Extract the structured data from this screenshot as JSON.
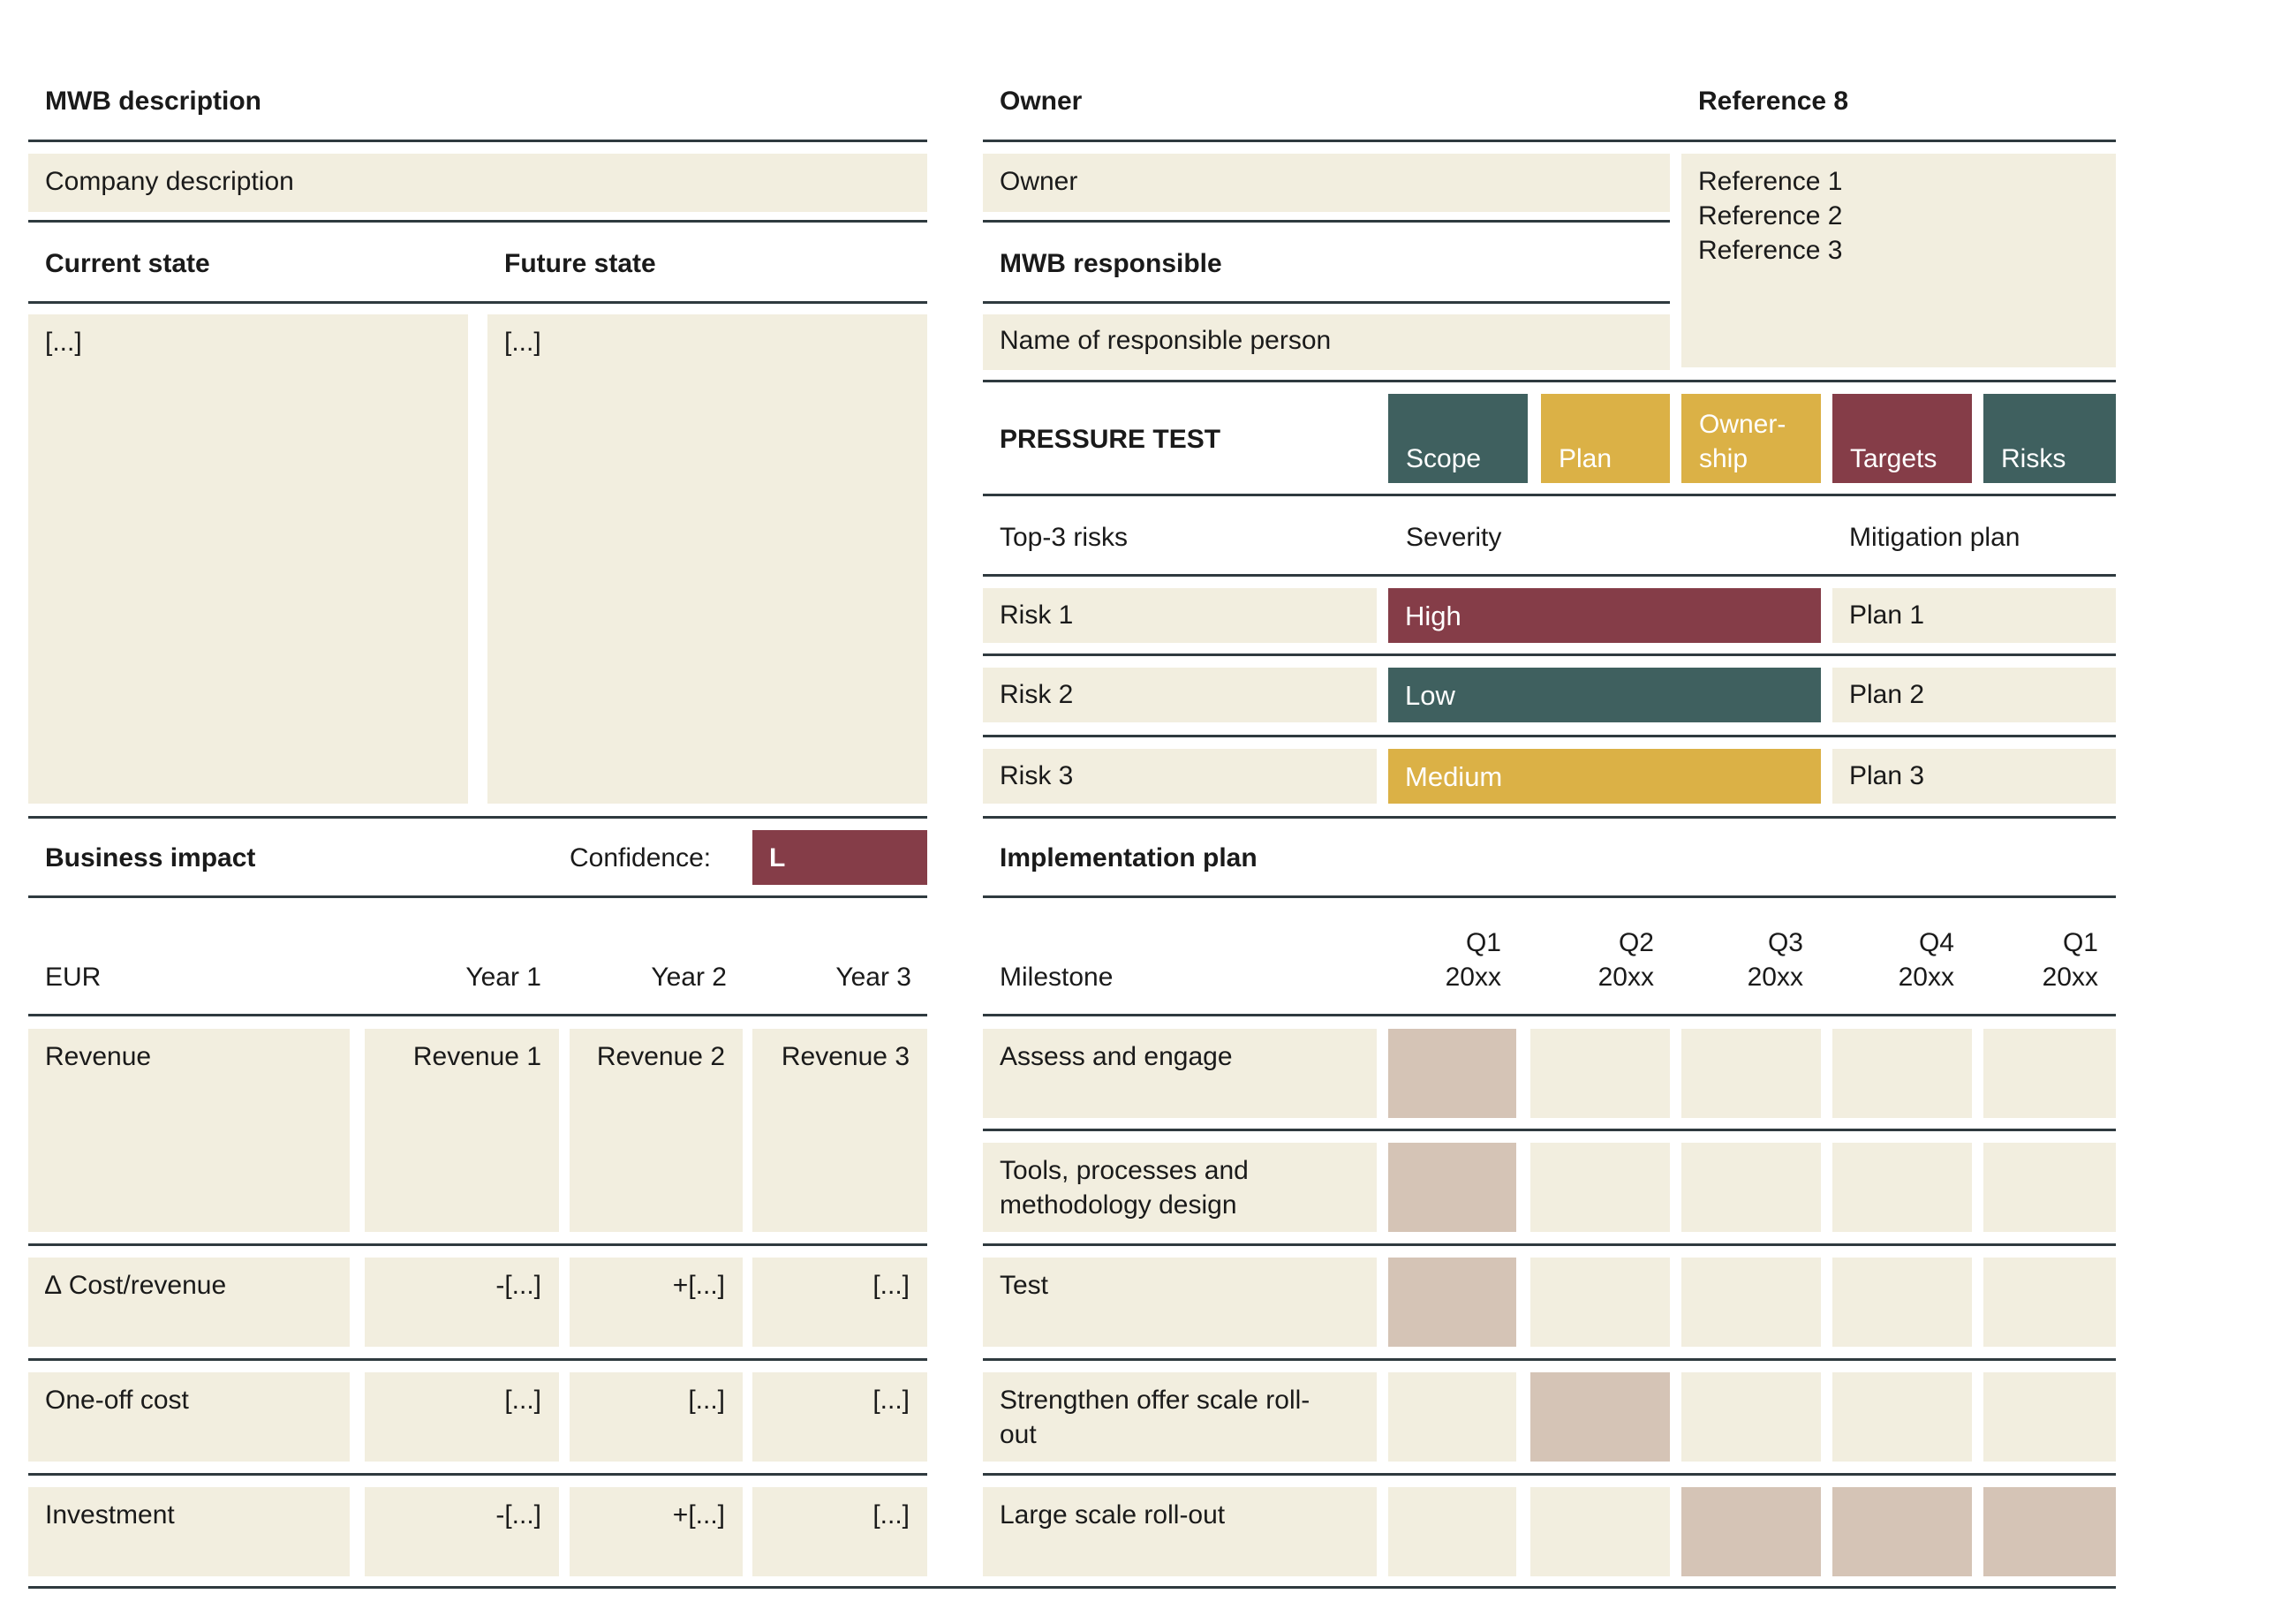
{
  "colors": {
    "teal": "#3f605f",
    "mustard": "#dbb146",
    "wine": "#853d48",
    "cell": "#f2eedf",
    "gantt": "#d5c4b6"
  },
  "left": {
    "mwb_description_heading": "MWB description",
    "company_description": "Company description",
    "current_state_heading": "Current state",
    "future_state_heading": "Future state",
    "current_state_value": "[...]",
    "future_state_value": "[...]",
    "business_impact_heading": "Business impact",
    "confidence_label": "Confidence:",
    "confidence_value": "L",
    "table_headers": [
      "EUR",
      "Year 1",
      "Year 2",
      "Year 3"
    ],
    "rows": [
      {
        "label": "Revenue",
        "values": [
          "Revenue 1",
          "Revenue 2",
          "Revenue 3"
        ]
      },
      {
        "label": "∆ Cost/revenue",
        "values": [
          "-[...]",
          "+[...]",
          "[...]"
        ]
      },
      {
        "label": "One-off cost",
        "values": [
          "[...]",
          "[...]",
          "[...]"
        ]
      },
      {
        "label": "Investment",
        "values": [
          "-[...]",
          "+[...]",
          "[...]"
        ]
      }
    ]
  },
  "right": {
    "owner_heading": "Owner",
    "reference_heading": "Reference 8",
    "owner_value": "Owner",
    "references": "Reference 1\nReference 2\nReference 3",
    "mwb_responsible_heading": "MWB responsible",
    "responsible_value": "Name of responsible person",
    "pressure_test_heading": "PRESSURE TEST",
    "pressure_tags": [
      {
        "label": "Scope",
        "color": "#3f605f"
      },
      {
        "label": "Plan",
        "color": "#dbb146"
      },
      {
        "label": "Owner-\nship",
        "color": "#dbb146"
      },
      {
        "label": "Targets",
        "color": "#853d48"
      },
      {
        "label": "Risks",
        "color": "#3f605f"
      }
    ],
    "risk_headers": [
      "Top-3 risks",
      "Severity",
      "Mitigation plan"
    ],
    "risks": [
      {
        "risk": "Risk 1",
        "severity": "High",
        "color": "#853d48",
        "plan": "Plan 1"
      },
      {
        "risk": "Risk 2",
        "severity": "Low",
        "color": "#3f605f",
        "plan": "Plan 2"
      },
      {
        "risk": "Risk 3",
        "severity": "Medium",
        "color": "#dbb146",
        "plan": "Plan 3"
      }
    ],
    "implementation_heading": "Implementation plan",
    "milestone_header": "Milestone",
    "quarters": [
      "Q1\n20xx",
      "Q2\n20xx",
      "Q3\n20xx",
      "Q4\n20xx",
      "Q1\n20xx"
    ],
    "milestones": [
      {
        "label": "Assess and engage",
        "active": [
          true,
          false,
          false,
          false,
          false
        ]
      },
      {
        "label": "Tools, processes and\nmethodology design",
        "active": [
          true,
          false,
          false,
          false,
          false
        ]
      },
      {
        "label": "Test",
        "active": [
          true,
          false,
          false,
          false,
          false
        ]
      },
      {
        "label": "Strengthen offer scale roll-\nout",
        "active": [
          false,
          true,
          false,
          false,
          false
        ]
      },
      {
        "label": "Large scale roll-out",
        "active": [
          false,
          false,
          true,
          true,
          true
        ]
      }
    ]
  }
}
